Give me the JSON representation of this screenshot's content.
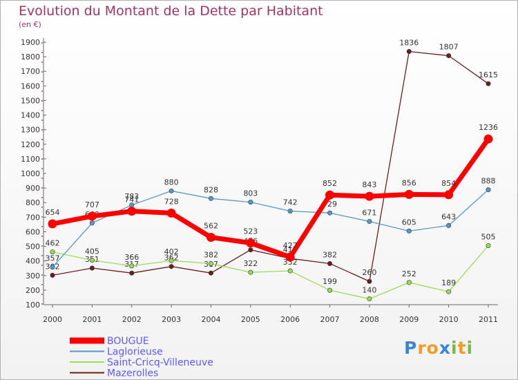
{
  "chart_data": {
    "type": "line",
    "title": "Evolution du Montant de la Dette par Habitant",
    "subtitle": "(en €)",
    "x": [
      "2000",
      "2001",
      "2002",
      "2003",
      "2004",
      "2005",
      "2006",
      "2007",
      "2008",
      "2009",
      "2010",
      "2011"
    ],
    "ylim": [
      100,
      1900
    ],
    "yticks": [
      100,
      200,
      300,
      400,
      500,
      600,
      700,
      800,
      900,
      1000,
      1100,
      1200,
      1300,
      1400,
      1500,
      1600,
      1700,
      1800,
      1900
    ],
    "grid": false,
    "legend_position": "bottom-left",
    "series": [
      {
        "name": "BOUGUE",
        "color": "#ff0000",
        "values": [
          654,
          707,
          741,
          728,
          562,
          523,
          427,
          852,
          843,
          856,
          854,
          1236
        ]
      },
      {
        "name": "Laglorieuse",
        "color": "#5599cc",
        "values": [
          357,
          660,
          783,
          880,
          828,
          803,
          742,
          729,
          671,
          605,
          643,
          888
        ]
      },
      {
        "name": "Saint-Cricq-Villeneuve",
        "color": "#99dd55",
        "values": [
          462,
          405,
          366,
          402,
          382,
          322,
          332,
          199,
          140,
          252,
          189,
          505
        ]
      },
      {
        "name": "Mazerolles",
        "color": "#6b1d1d",
        "values": [
          302,
          351,
          317,
          362,
          317,
          476,
          417,
          382,
          260,
          1836,
          1807,
          1615
        ]
      }
    ]
  },
  "brand": {
    "letters": [
      "P",
      "r",
      "o",
      "x",
      "i",
      "t",
      "i"
    ],
    "colors": [
      "#3a86d4",
      "#f59a23",
      "#f59a23",
      "#3a86d4",
      "#7ab648",
      "#f59a23",
      "#7ab648"
    ]
  }
}
